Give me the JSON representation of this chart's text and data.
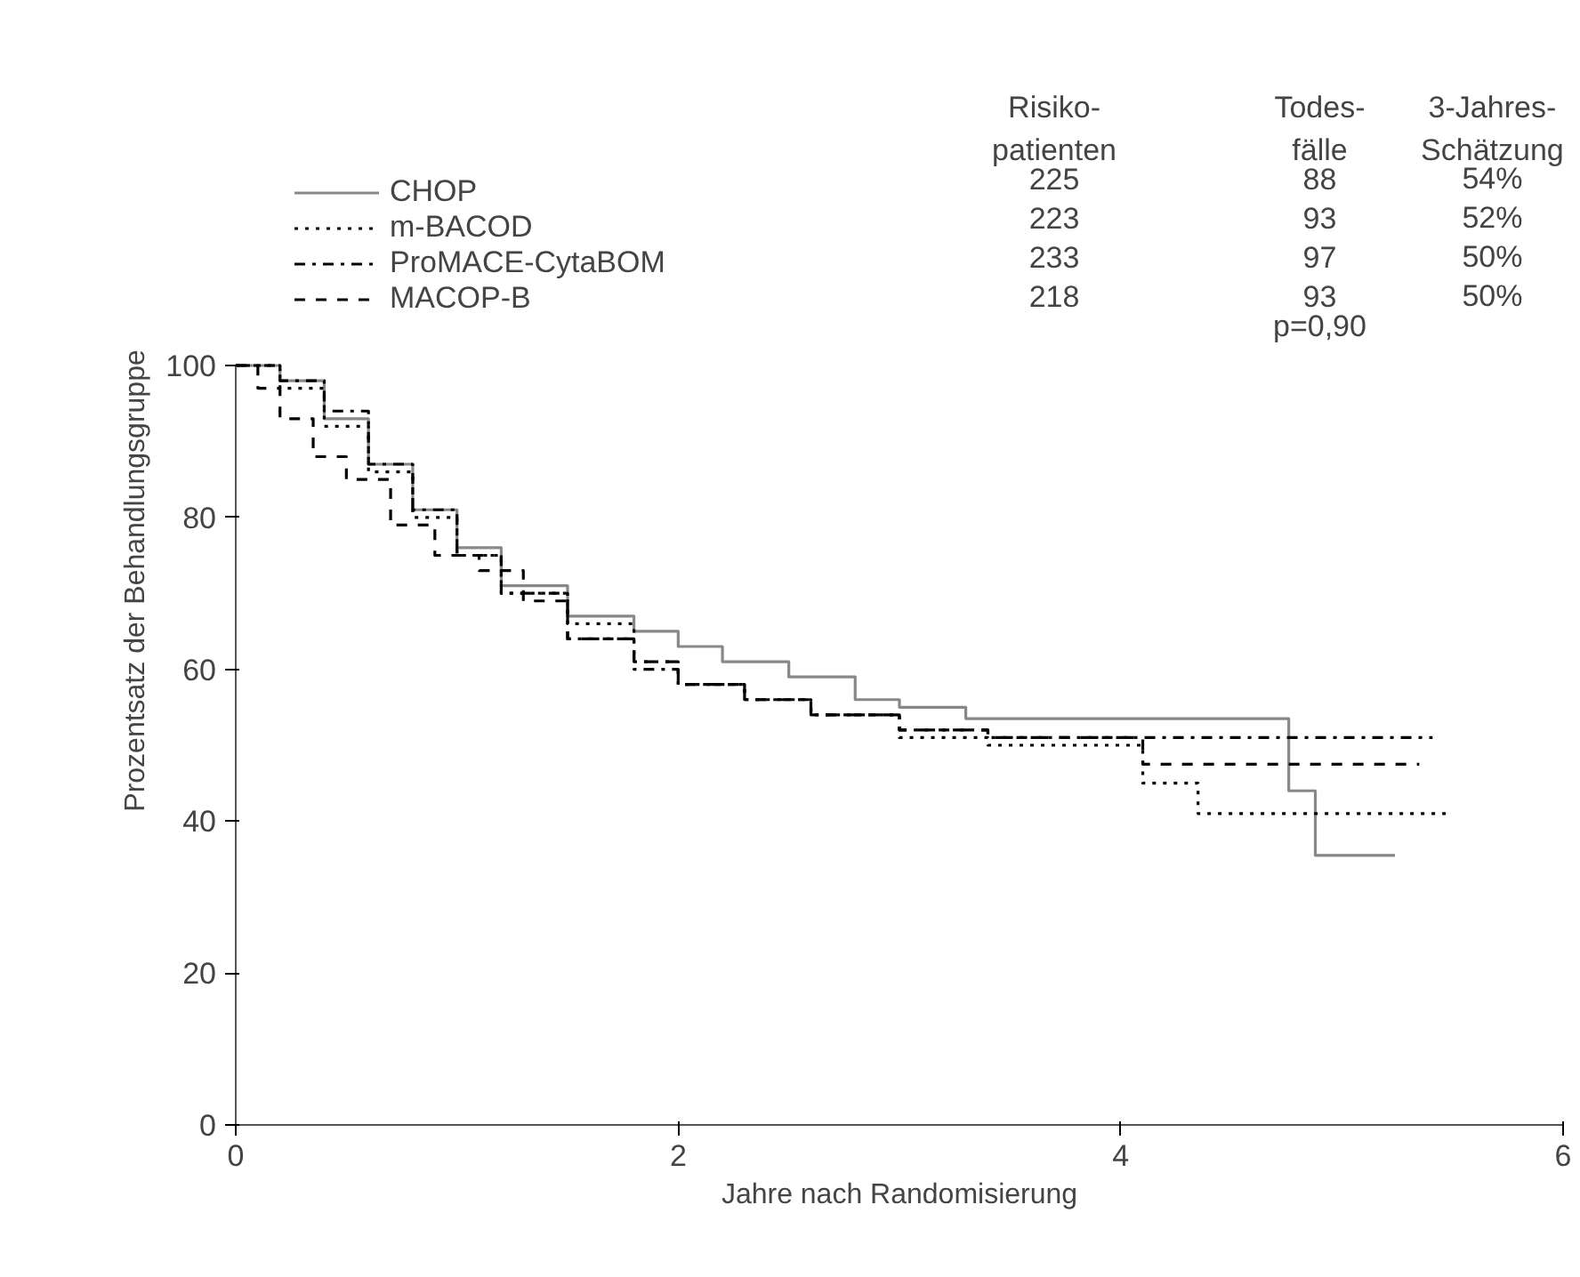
{
  "chart_data": {
    "type": "step",
    "xlabel": "Jahre nach Randomisierung",
    "ylabel": "Prozentsatz der Behandlungsgruppe",
    "xlim": [
      0,
      6
    ],
    "ylim": [
      0,
      100
    ],
    "xticks": [
      0,
      2,
      4,
      6
    ],
    "yticks": [
      0,
      20,
      40,
      60,
      80,
      100
    ],
    "grid": false,
    "legend": "top",
    "annotations": [
      "Risiko-\npatienten",
      "Todes-\nfälle",
      "3-Jahres-\nSchätzung",
      "225",
      "88",
      "54%",
      "223",
      "93",
      "52%",
      "233",
      "97",
      "50%",
      "218",
      "93",
      "50%",
      "p=0,90"
    ],
    "series": [
      {
        "name": "CHOP",
        "color": "#888888",
        "line_style": "solid",
        "x": [
          0,
          0.2,
          0.4,
          0.6,
          0.8,
          1.0,
          1.2,
          1.5,
          1.8,
          2.0,
          2.2,
          2.5,
          2.8,
          3.0,
          3.3,
          4.76,
          4.88,
          5.24
        ],
        "values": [
          100,
          98,
          93,
          87,
          81,
          76,
          71,
          67,
          65,
          63,
          61,
          59,
          56,
          55,
          53.5,
          44,
          35.5,
          35.5
        ]
      },
      {
        "name": "m-BACOD",
        "color": "#000000",
        "line_style": "dotted",
        "x": [
          0,
          0.2,
          0.4,
          0.6,
          0.8,
          1.0,
          1.2,
          1.5,
          1.8,
          2.0,
          2.3,
          2.6,
          3.0,
          3.4,
          4.1,
          4.35,
          5.49
        ],
        "values": [
          100,
          97,
          92,
          86,
          80,
          75,
          70,
          66,
          61,
          58,
          56,
          54,
          51,
          50,
          45,
          41,
          41
        ]
      },
      {
        "name": "ProMACE-CytaBOM",
        "color": "#000000",
        "line_style": "dashdot",
        "x": [
          0,
          0.2,
          0.4,
          0.6,
          0.8,
          1.0,
          1.2,
          1.5,
          1.8,
          2.0,
          2.3,
          2.6,
          3.0,
          3.4,
          5.41
        ],
        "values": [
          100,
          98,
          94,
          87,
          81,
          75,
          70,
          64,
          60,
          58,
          56,
          54,
          52,
          51,
          51
        ]
      },
      {
        "name": "MACOP-B",
        "color": "#000000",
        "line_style": "dashed",
        "x": [
          0,
          0.1,
          0.2,
          0.35,
          0.5,
          0.7,
          0.9,
          1.1,
          1.3,
          1.5,
          1.8,
          2.0,
          2.3,
          2.6,
          3.0,
          3.4,
          4.1,
          5.35
        ],
        "values": [
          100,
          97,
          93,
          88,
          85,
          79,
          75,
          73,
          69,
          64,
          61,
          58,
          56,
          54,
          52,
          51,
          47.5,
          47.5
        ]
      }
    ]
  }
}
